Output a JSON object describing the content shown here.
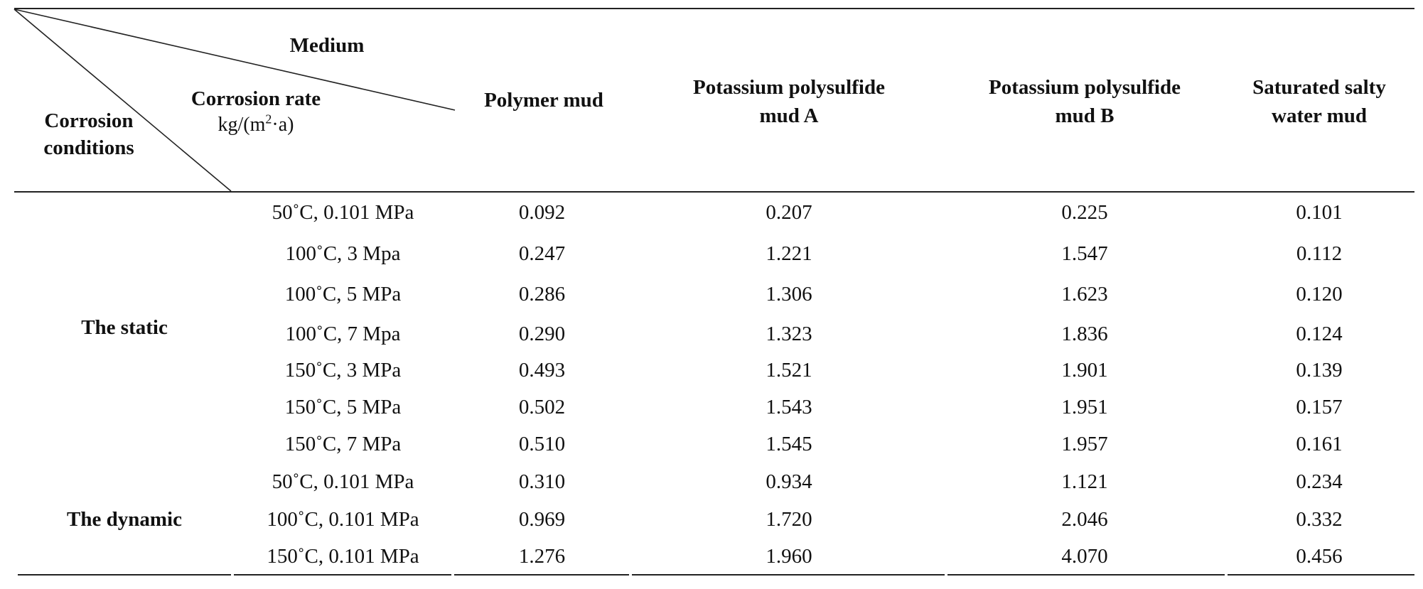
{
  "header": {
    "medium_label": "Medium",
    "rate_label": "Corrosion rate",
    "rate_unit_prefix": "kg/(m",
    "rate_unit_sup": "2",
    "rate_unit_suffix": "·a)",
    "conditions_line1": "Corrosion",
    "conditions_line2": "conditions",
    "columns": [
      {
        "line1": "Polymer mud",
        "line2": ""
      },
      {
        "line1": "Potassium polysulfide",
        "line2": "mud A"
      },
      {
        "line1": "Potassium polysulfide",
        "line2": "mud B"
      },
      {
        "line1": "Saturated salty",
        "line2": "water mud"
      }
    ]
  },
  "groups": [
    {
      "label": "The static",
      "rows": [
        {
          "condition": "50˚C, 0.101 MPa",
          "values": [
            "0.092",
            "0.207",
            "0.225",
            "0.101"
          ]
        },
        {
          "condition": "100˚C, 3 Mpa",
          "values": [
            "0.247",
            "1.221",
            "1.547",
            "0.112"
          ]
        },
        {
          "condition": "100˚C, 5 MPa",
          "values": [
            "0.286",
            "1.306",
            "1.623",
            "0.120"
          ]
        },
        {
          "condition": "100˚C, 7 Mpa",
          "values": [
            "0.290",
            "1.323",
            "1.836",
            "0.124"
          ]
        },
        {
          "condition": "150˚C, 3 MPa",
          "values": [
            "0.493",
            "1.521",
            "1.901",
            "0.139"
          ]
        },
        {
          "condition": "150˚C, 5 MPa",
          "values": [
            "0.502",
            "1.543",
            "1.951",
            "0.157"
          ]
        },
        {
          "condition": "150˚C, 7 MPa",
          "values": [
            "0.510",
            "1.545",
            "1.957",
            "0.161"
          ]
        }
      ]
    },
    {
      "label": "The dynamic",
      "rows": [
        {
          "condition": "50˚C, 0.101 MPa",
          "values": [
            "0.310",
            "0.934",
            "1.121",
            "0.234"
          ]
        },
        {
          "condition": "100˚C, 0.101 MPa",
          "values": [
            "0.969",
            "1.720",
            "2.046",
            "0.332"
          ]
        },
        {
          "condition": "150˚C, 0.101 MPa",
          "values": [
            "1.276",
            "1.960",
            "4.070",
            "0.456"
          ]
        }
      ]
    }
  ]
}
